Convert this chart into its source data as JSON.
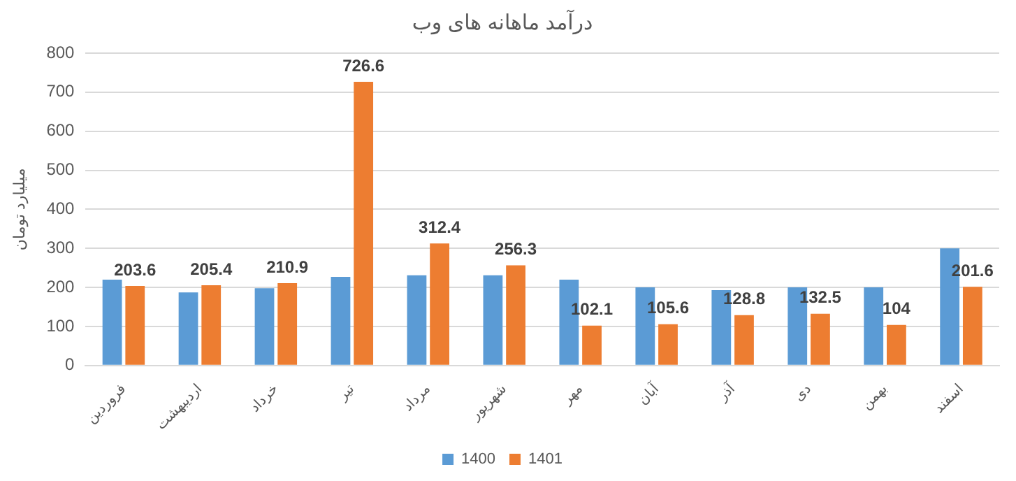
{
  "chart_data": {
    "type": "bar",
    "title": "درآمد ماهانه های وب",
    "ylabel": "میلیارد تومان",
    "categories": [
      "فروردین",
      "اردیبهشت",
      "خرداد",
      "تیر",
      "مرداد",
      "شهریور",
      "مهر",
      "آبان",
      "آذر",
      "دی",
      "بهمن",
      "اسفند"
    ],
    "series": [
      {
        "name": "1400",
        "color": "#5b9bd5",
        "values": [
          220,
          187,
          198,
          227,
          231,
          231,
          220,
          200,
          193,
          200,
          200,
          300
        ]
      },
      {
        "name": "1401",
        "color": "#ed7d31",
        "values": [
          203.6,
          205.4,
          210.9,
          726.6,
          312.4,
          256.3,
          102.1,
          105.6,
          128.8,
          132.5,
          104,
          201.6
        ],
        "value_labels": [
          "203.6",
          "205.4",
          "210.9",
          "726.6",
          "312.4",
          "256.3",
          "102.1",
          "105.6",
          "128.8",
          "132.5",
          "104",
          "201.6"
        ]
      }
    ],
    "ylim": [
      0,
      800
    ],
    "yticks": [
      0,
      100,
      200,
      300,
      400,
      500,
      600,
      700,
      800
    ],
    "grid": "y",
    "legend": "bottom"
  }
}
